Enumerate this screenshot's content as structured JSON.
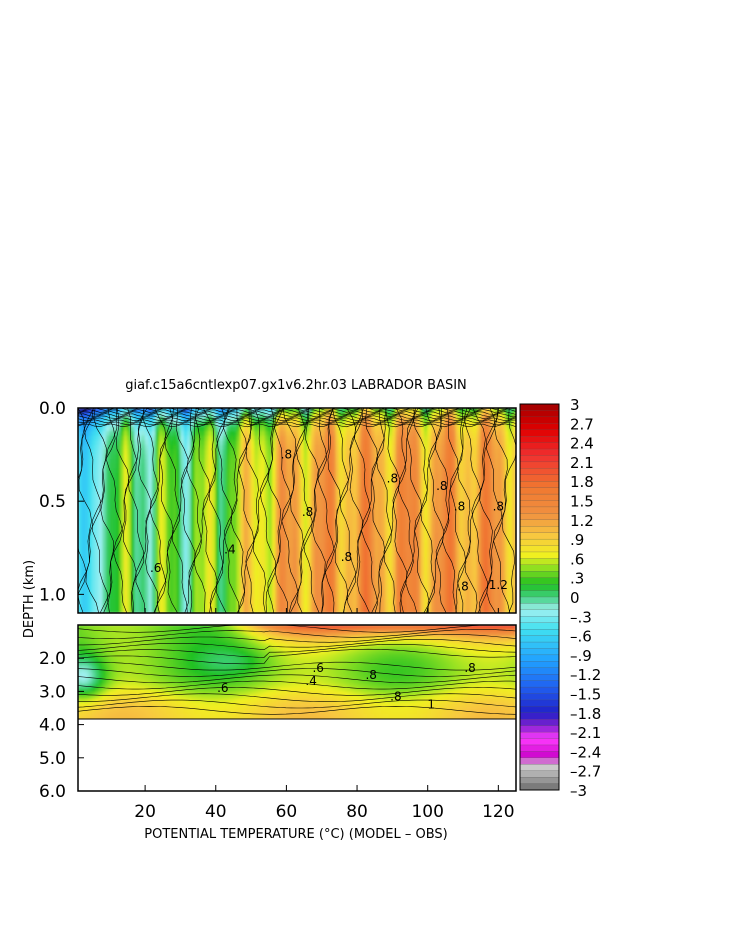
{
  "chart_data": {
    "type": "heatmap",
    "title": "giaf.c15a6cntlexp07.gx1v6.2hr.03 LABRADOR BASIN",
    "xlabel": "POTENTIAL TEMPERATURE (°C) (MODEL – OBS)",
    "ylabel": "DEPTH (km)",
    "xlim": [
      1,
      125
    ],
    "x_ticks": [
      20,
      40,
      60,
      80,
      100,
      120
    ],
    "upper_panel": {
      "ylim": [
        0.0,
        1.1
      ],
      "y_ticks": [
        "0.0",
        "0.5",
        "1.0"
      ]
    },
    "lower_panel": {
      "ylim": [
        1.0,
        6.0
      ],
      "data_max_depth": 3.9,
      "y_ticks": [
        "2.0",
        "3.0",
        "4.0",
        "5.0",
        "6.0"
      ]
    },
    "contour_labels": [
      ".8",
      ".8",
      ".8",
      ".8",
      ".8",
      ".8",
      ".4",
      ".6",
      ".8",
      "1.2",
      ".8",
      ".4",
      ".6",
      ".8",
      ".8",
      ".6",
      ".8",
      "1"
    ],
    "colorbar": {
      "min": -3,
      "max": 3,
      "step": 0.1,
      "labels": [
        "3",
        "2.7",
        "2.4",
        "2.1",
        "1.8",
        "1.5",
        "1.2",
        ".9",
        ".6",
        ".3",
        "0",
        "–.3",
        "–.6",
        "–.9",
        "–1.2",
        "–1.5",
        "–1.8",
        "–2.1",
        "–2.4",
        "–2.7",
        "–3"
      ],
      "stops": [
        {
          "v": -3.0,
          "c": "#6e6e6e"
        },
        {
          "v": -2.6,
          "c": "#d8d8d8"
        },
        {
          "v": -2.5,
          "c": "#c800c8"
        },
        {
          "v": -2.2,
          "c": "#ff3cff"
        },
        {
          "v": -2.0,
          "c": "#8020d0"
        },
        {
          "v": -1.8,
          "c": "#2020c8"
        },
        {
          "v": -1.4,
          "c": "#2060f0"
        },
        {
          "v": -1.0,
          "c": "#20a0ff"
        },
        {
          "v": -0.5,
          "c": "#40e0f0"
        },
        {
          "v": -0.2,
          "c": "#a0f0f0"
        },
        {
          "v": 0.0,
          "c": "#40d080"
        },
        {
          "v": 0.2,
          "c": "#20c020"
        },
        {
          "v": 0.45,
          "c": "#90e020"
        },
        {
          "v": 0.65,
          "c": "#f0f020"
        },
        {
          "v": 0.95,
          "c": "#f8c840"
        },
        {
          "v": 1.3,
          "c": "#f09040"
        },
        {
          "v": 1.7,
          "c": "#f07830"
        },
        {
          "v": 2.2,
          "c": "#f03030"
        },
        {
          "v": 2.6,
          "c": "#e00000"
        },
        {
          "v": 3.0,
          "c": "#a00000"
        }
      ]
    }
  }
}
